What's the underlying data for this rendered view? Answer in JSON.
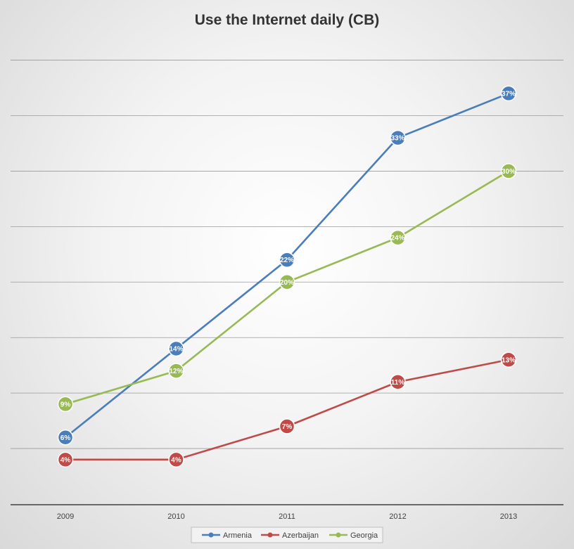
{
  "chart_data": {
    "type": "line",
    "title": "Use the Internet daily (CB)",
    "xlabel": "",
    "ylabel": "",
    "categories": [
      "2009",
      "2010",
      "2011",
      "2012",
      "2013"
    ],
    "ylim": [
      0,
      42
    ],
    "grid": true,
    "legend_position": "bottom",
    "series": [
      {
        "name": "Armenia",
        "color": "#4a7ebb",
        "values": [
          6,
          14,
          22,
          33,
          37
        ],
        "labels": [
          "6%",
          "14%",
          "22%",
          "33%",
          "37%"
        ]
      },
      {
        "name": "Azerbaijan",
        "color": "#be4b48",
        "values": [
          4,
          4,
          7,
          11,
          13
        ],
        "labels": [
          "4%",
          "4%",
          "7%",
          "11%",
          "13%"
        ]
      },
      {
        "name": "Georgia",
        "color": "#98b954",
        "values": [
          9,
          12,
          20,
          24,
          30
        ],
        "labels": [
          "9%",
          "12%",
          "20%",
          "24%",
          "30%"
        ]
      }
    ]
  }
}
